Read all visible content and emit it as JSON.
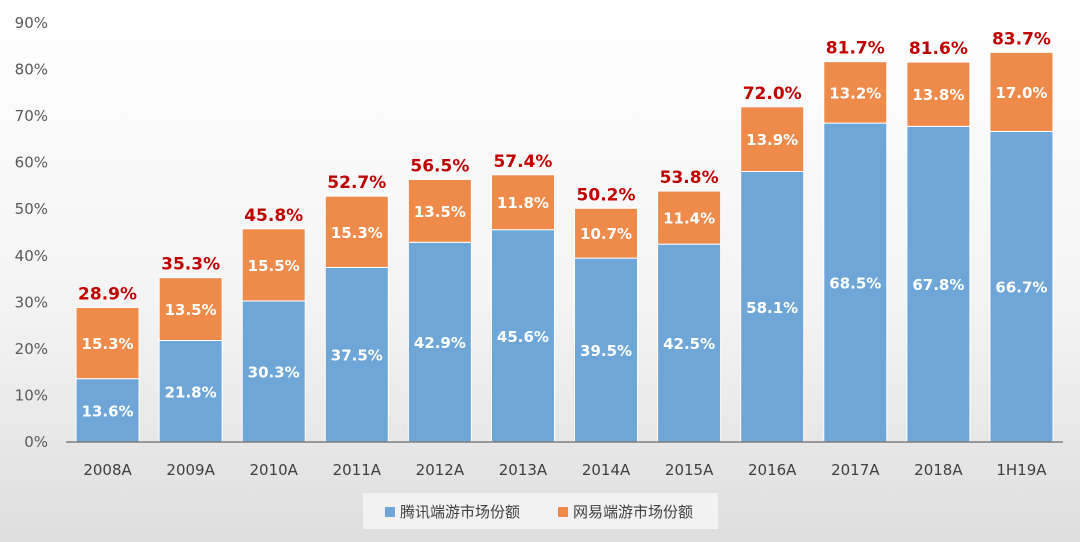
{
  "chart_data": {
    "type": "bar",
    "stacked": true,
    "categories": [
      "2008A",
      "2009A",
      "2010A",
      "2011A",
      "2012A",
      "2013A",
      "2014A",
      "2015A",
      "2016A",
      "2017A",
      "2018A",
      "1H19A"
    ],
    "series": [
      {
        "name": "腾讯端游市场份额",
        "color": "#6ea6d8",
        "values": [
          13.6,
          21.8,
          30.3,
          37.5,
          42.9,
          45.6,
          39.5,
          42.5,
          58.1,
          68.5,
          67.8,
          66.7
        ],
        "labels": [
          "13.6%",
          "21.8%",
          "30.3%",
          "37.5%",
          "42.9%",
          "45.6%",
          "39.5%",
          "42.5%",
          "58.1%",
          "68.5%",
          "67.8%",
          "66.7%"
        ]
      },
      {
        "name": "网易端游市场份额",
        "color": "#ee8a4a",
        "values": [
          15.3,
          13.5,
          15.5,
          15.3,
          13.5,
          11.8,
          10.7,
          11.4,
          13.9,
          13.2,
          13.8,
          17.0
        ],
        "labels": [
          "15.3%",
          "13.5%",
          "15.5%",
          "15.3%",
          "13.5%",
          "11.8%",
          "10.7%",
          "11.4%",
          "13.9%",
          "13.2%",
          "13.8%",
          "17.0%"
        ]
      }
    ],
    "totals": [
      "28.9%",
      "35.3%",
      "45.8%",
      "52.7%",
      "56.5%",
      "57.4%",
      "50.2%",
      "53.8%",
      "72.0%",
      "81.7%",
      "81.6%",
      "83.7%"
    ],
    "ylim": [
      0,
      90
    ],
    "yticks": [
      "0%",
      "10%",
      "20%",
      "30%",
      "40%",
      "50%",
      "60%",
      "70%",
      "80%",
      "90%"
    ],
    "grid": false,
    "legend_position": "bottom",
    "total_label_color": "#c00000"
  }
}
